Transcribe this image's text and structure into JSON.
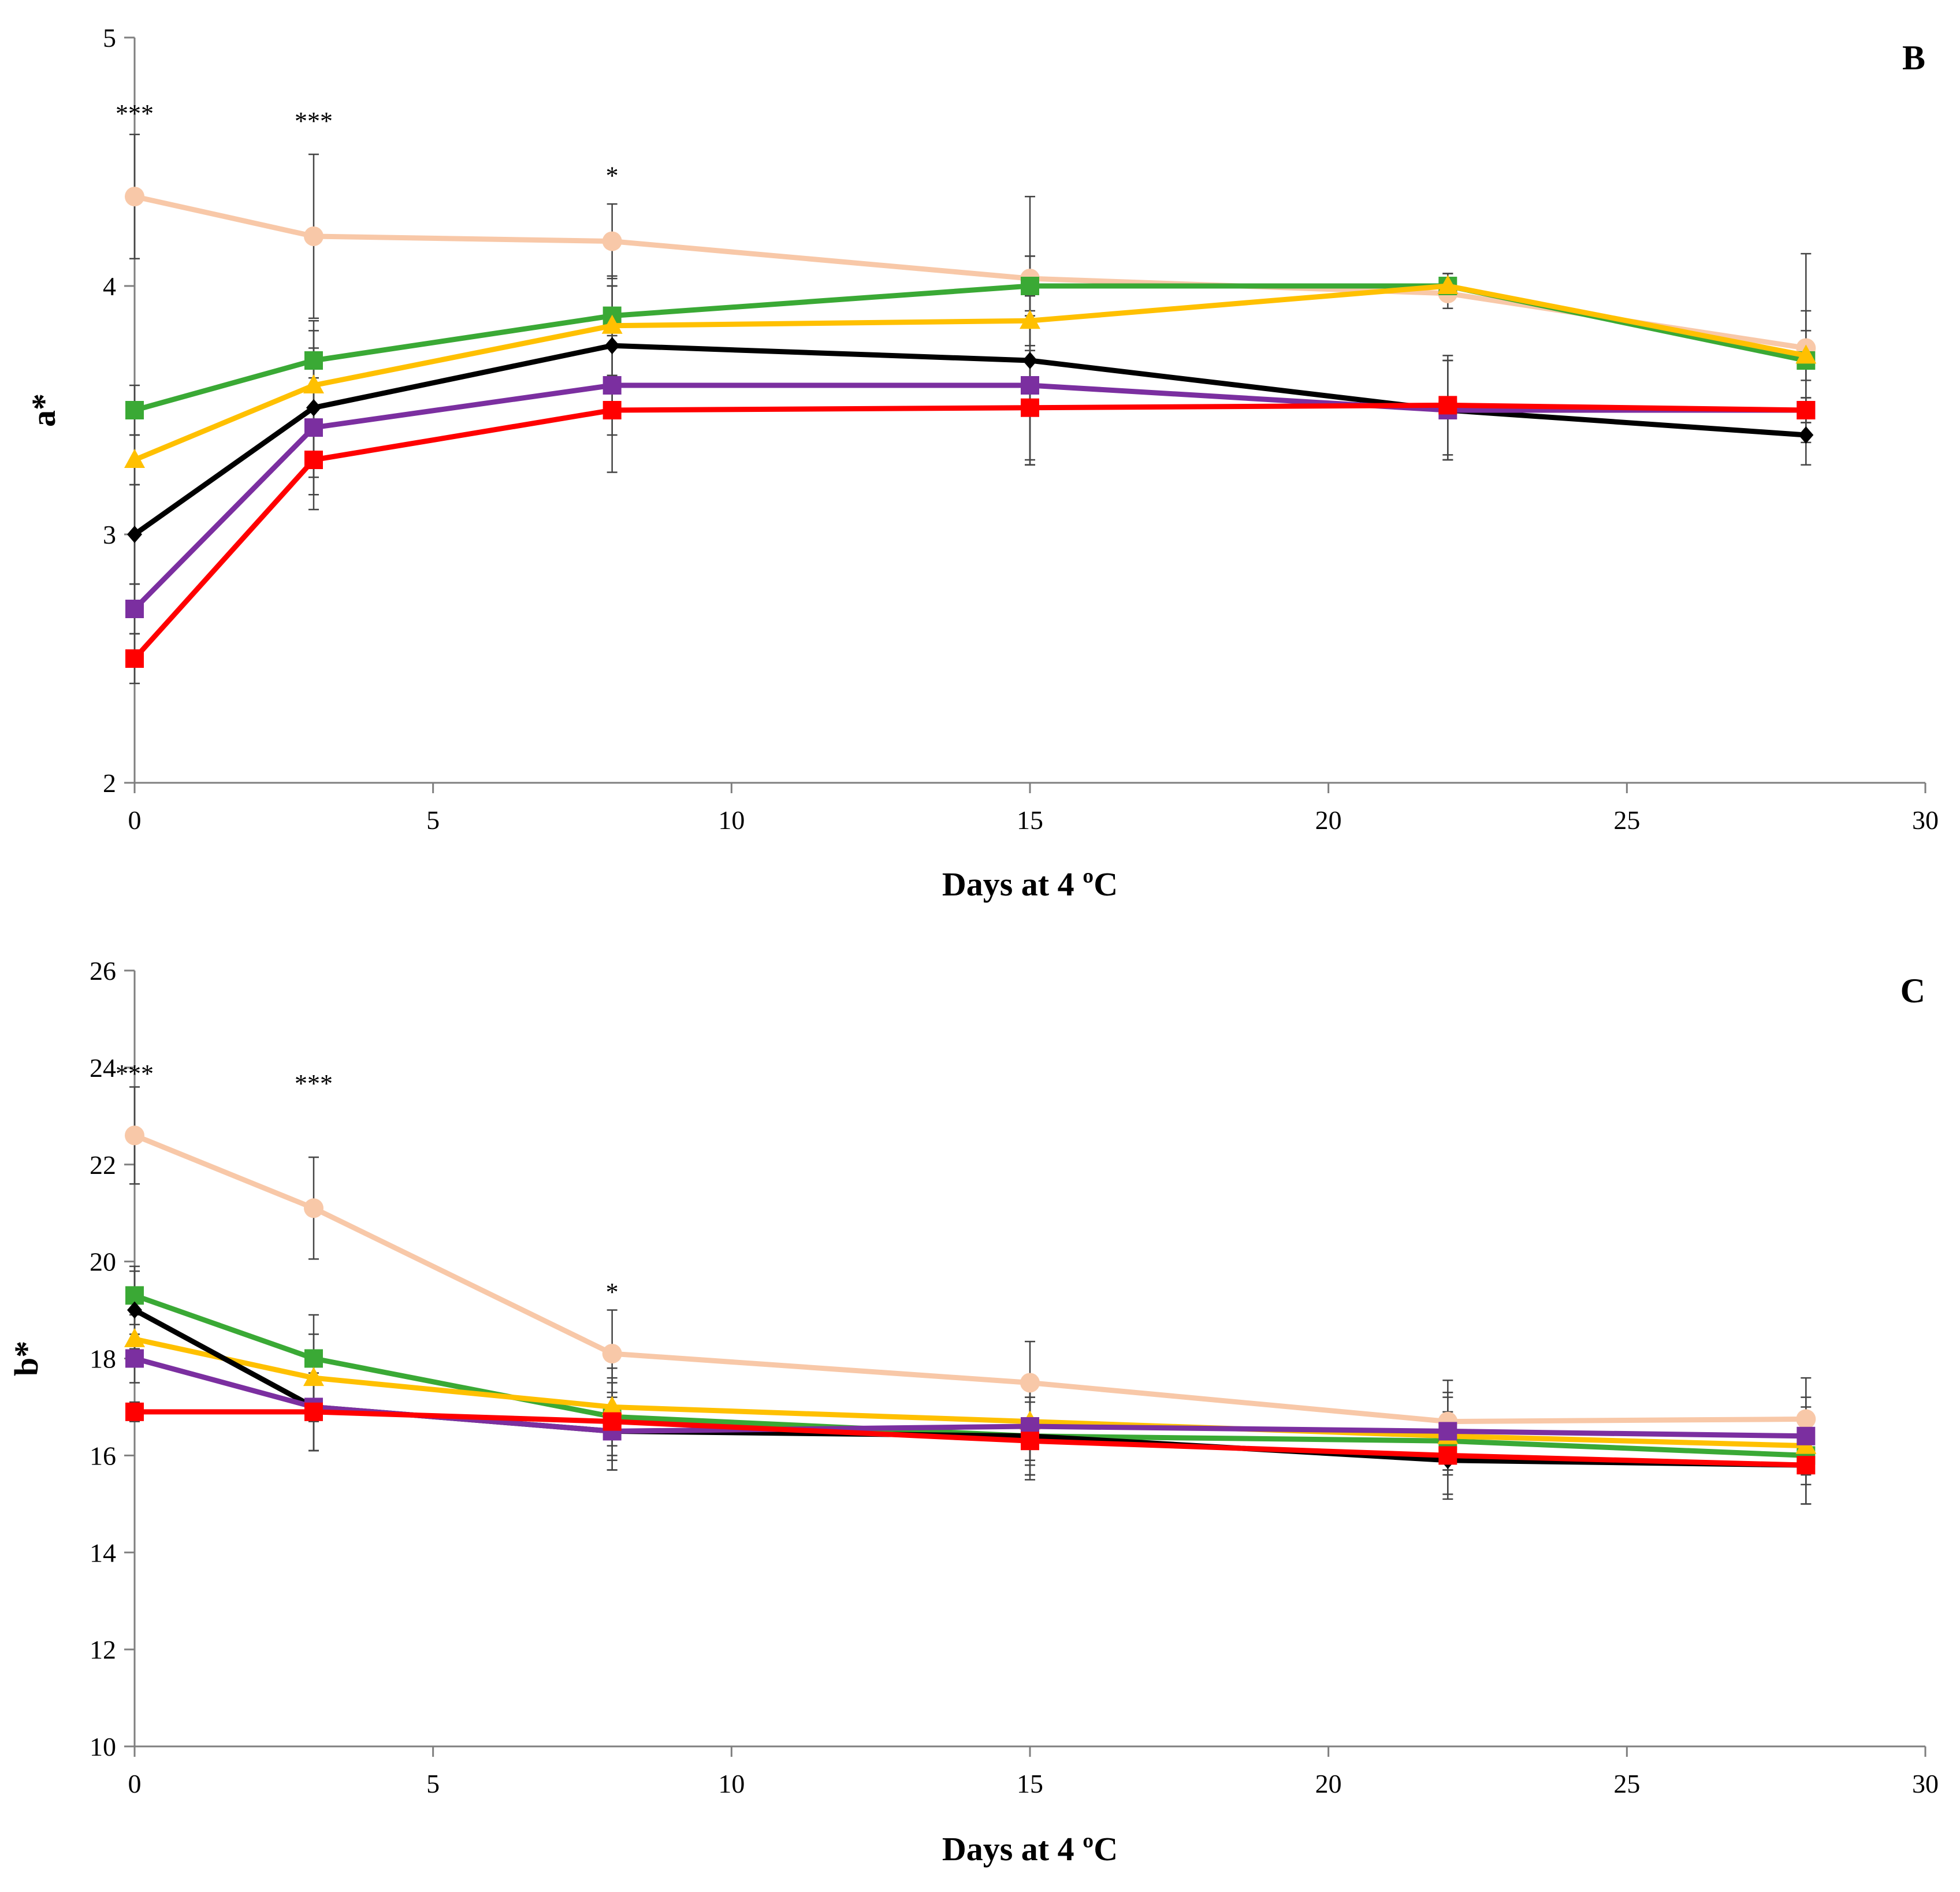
{
  "chart_data": [
    {
      "type": "line",
      "panel_label": "B",
      "xlabel": "Days at 4 ºC",
      "ylabel": "a*",
      "xlim": [
        0,
        30
      ],
      "ylim": [
        2,
        5
      ],
      "xticks": [
        0,
        5,
        10,
        15,
        20,
        25,
        30
      ],
      "yticks": [
        2,
        3,
        4,
        5
      ],
      "x": [
        0,
        3,
        8,
        15,
        22,
        28
      ],
      "grid": false,
      "series": [
        {
          "name": "peach-circle",
          "color": "#F8C8A8",
          "marker": "circle",
          "values": [
            4.36,
            4.2,
            4.18,
            4.03,
            3.97,
            3.75
          ],
          "errors": [
            0.25,
            0.33,
            0.15,
            0.33,
            0.06,
            0.38
          ]
        },
        {
          "name": "green-square",
          "color": "#3AA935",
          "marker": "square",
          "values": [
            3.5,
            3.7,
            3.88,
            4.0,
            4.0,
            3.7
          ],
          "errors": [
            0.1,
            0.12,
            0.12,
            0.12,
            0.05,
            0.2
          ]
        },
        {
          "name": "yellow-triangle",
          "color": "#FFC000",
          "marker": "triangle",
          "values": [
            3.3,
            3.6,
            3.84,
            3.86,
            4.0,
            3.72
          ],
          "errors": [
            0.1,
            0.15,
            0.2,
            0.1,
            0.05,
            0.1
          ]
        },
        {
          "name": "black-diamond",
          "color": "#000000",
          "marker": "diamond",
          "values": [
            3.0,
            3.51,
            3.76,
            3.7,
            3.5,
            3.4
          ],
          "errors": [
            0.2,
            0.35,
            0.24,
            0.42,
            0.2,
            0.12
          ]
        },
        {
          "name": "purple-square",
          "color": "#7B2FA0",
          "marker": "square",
          "values": [
            2.7,
            3.43,
            3.6,
            3.6,
            3.5,
            3.5
          ],
          "errors": [
            0.1,
            0.2,
            0.2,
            0.3,
            0.2,
            0.05
          ]
        },
        {
          "name": "red-square",
          "color": "#FF0000",
          "marker": "square",
          "values": [
            2.5,
            3.3,
            3.5,
            3.51,
            3.52,
            3.5
          ],
          "errors": [
            0.1,
            0.2,
            0.25,
            0.23,
            0.2,
            0.05
          ]
        }
      ],
      "annotations": [
        {
          "text": "***",
          "x": 0,
          "y": 4.66
        },
        {
          "text": "***",
          "x": 3,
          "y": 4.63
        },
        {
          "text": "*",
          "x": 8,
          "y": 4.41
        }
      ]
    },
    {
      "type": "line",
      "panel_label": "C",
      "xlabel": "Days at 4 ºC",
      "ylabel": "b*",
      "xlim": [
        0,
        30
      ],
      "ylim": [
        10,
        26
      ],
      "xticks": [
        0,
        5,
        10,
        15,
        20,
        25,
        30
      ],
      "yticks": [
        10,
        12,
        14,
        16,
        18,
        20,
        22,
        24,
        26
      ],
      "x": [
        0,
        3,
        8,
        15,
        22,
        28
      ],
      "grid": false,
      "series": [
        {
          "name": "peach-circle",
          "color": "#F8C8A8",
          "marker": "circle",
          "values": [
            22.6,
            21.1,
            18.1,
            17.5,
            16.7,
            16.75
          ],
          "errors": [
            1.0,
            1.05,
            0.9,
            0.85,
            0.85,
            0.85
          ]
        },
        {
          "name": "green-square",
          "color": "#3AA935",
          "marker": "square",
          "values": [
            19.3,
            18.0,
            16.8,
            16.4,
            16.3,
            16.0
          ],
          "errors": [
            0.6,
            0.9,
            0.8,
            0.8,
            0.6,
            0.6
          ]
        },
        {
          "name": "yellow-triangle",
          "color": "#FFC000",
          "marker": "triangle",
          "values": [
            18.4,
            17.6,
            17.0,
            16.7,
            16.4,
            16.2
          ],
          "errors": [
            0.5,
            0.9,
            0.8,
            0.8,
            0.8,
            0.8
          ]
        },
        {
          "name": "black-diamond",
          "color": "#000000",
          "marker": "diamond",
          "values": [
            19.0,
            17.0,
            16.5,
            16.4,
            15.9,
            15.8
          ],
          "errors": [
            0.8,
            0.9,
            0.8,
            0.8,
            0.8,
            0.8
          ]
        },
        {
          "name": "purple-square",
          "color": "#7B2FA0",
          "marker": "square",
          "values": [
            18.0,
            17.0,
            16.5,
            16.6,
            16.5,
            16.4
          ],
          "errors": [
            0.5,
            0.9,
            0.8,
            0.8,
            0.8,
            0.8
          ]
        },
        {
          "name": "red-square",
          "color": "#FF0000",
          "marker": "square",
          "values": [
            16.9,
            16.9,
            16.7,
            16.3,
            16.0,
            15.8
          ],
          "errors": [
            0.2,
            0.8,
            0.8,
            0.8,
            0.8,
            0.8
          ]
        }
      ],
      "annotations": [
        {
          "text": "***",
          "x": 0,
          "y": 23.7
        },
        {
          "text": "***",
          "x": 3,
          "y": 23.5
        },
        {
          "text": "*",
          "x": 8,
          "y": 19.2
        }
      ]
    }
  ]
}
